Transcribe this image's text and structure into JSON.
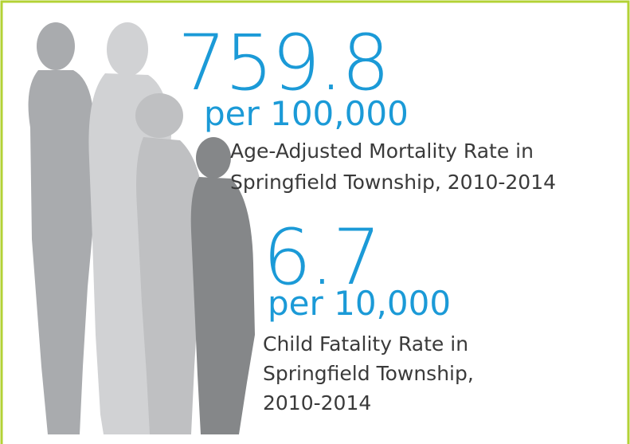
{
  "stats": [
    {
      "value": 759.8,
      "unit": "per 100,000",
      "label_lines": [
        "Age-Adjusted Mortality Rate in",
        "Springfield Township, 2010-2014"
      ]
    },
    {
      "value": 6.7,
      "unit": "per 10,000",
      "label_lines": [
        "Child Fatality Rate in",
        "Springfield Township,",
        "2010-2014"
      ]
    }
  ]
}
